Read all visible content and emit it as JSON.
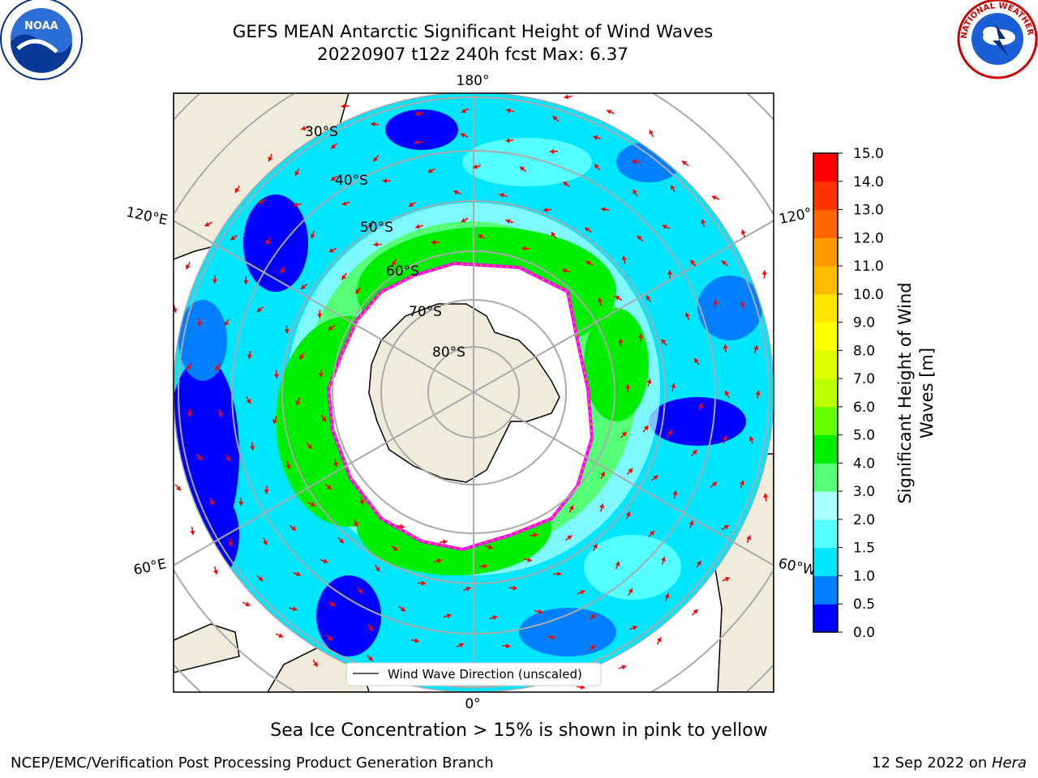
{
  "header": {
    "title_line1": "GEFS MEAN Antarctic Significant Height of Wind Waves",
    "title_line2": "20220907 t12z 240h fcst   Max: 6.37"
  },
  "logos": {
    "noaa_label": "NOAA",
    "nws_label": "NATIONAL WEATHER SERVICE"
  },
  "map": {
    "projection": "south-polar-stereographic",
    "longitude_labels": [
      "180°",
      "120°E",
      "120°",
      "60°E",
      "60°W",
      "0°"
    ],
    "latitude_labels": [
      "30°S",
      "40°S",
      "50°S",
      "60°S",
      "70°S",
      "80°S"
    ],
    "legend_label": "Wind Wave Direction (unscaled)",
    "arrow_color": "#ff0000",
    "land_color": "#efecdc",
    "ice_edge_colors": [
      "#ff00ff",
      "#ffa500",
      "#ffff00"
    ]
  },
  "colorbar": {
    "label_line1": "Significant Height of Wind",
    "label_line2": "Waves [m]",
    "ticks": [
      "0.0",
      "0.5",
      "1.0",
      "1.5",
      "2.0",
      "3.0",
      "4.0",
      "5.0",
      "6.0",
      "7.0",
      "8.0",
      "9.0",
      "10.0",
      "11.0",
      "12.0",
      "13.0",
      "14.0",
      "15.0"
    ],
    "colors": [
      "#0000ff",
      "#0080ff",
      "#00e6ff",
      "#55ffff",
      "#aaffff",
      "#55ff77",
      "#00ee00",
      "#66ff00",
      "#bbff00",
      "#ddff00",
      "#ffff00",
      "#ffe600",
      "#ffbb00",
      "#ff9900",
      "#ff6600",
      "#ff3300",
      "#ff0000"
    ]
  },
  "footer": {
    "note": "Sea Ice Concentration > 15% is shown in pink to yellow",
    "left": "NCEP/EMC/Verification Post Processing Product Generation Branch",
    "right_prefix": "12 Sep 2022 on ",
    "right_host": "Hera"
  }
}
